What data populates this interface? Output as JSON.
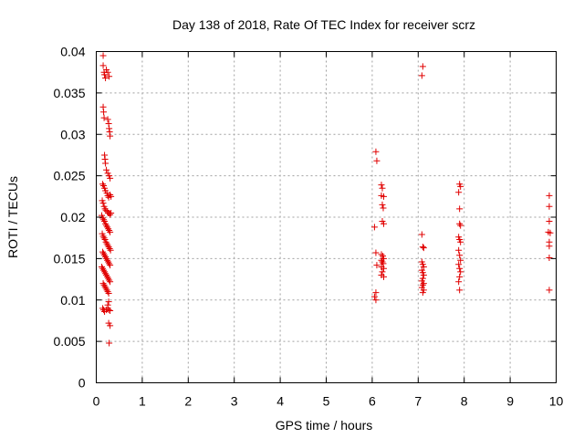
{
  "chart_data": {
    "type": "scatter",
    "title": "Day 138 of 2018, Rate Of TEC Index for receiver scrz",
    "xlabel": "GPS time / hours",
    "ylabel": "ROTI / TECUs",
    "xlim": [
      0,
      10
    ],
    "ylim": [
      0,
      0.04
    ],
    "xticks": [
      "0",
      "1",
      "2",
      "3",
      "4",
      "5",
      "6",
      "7",
      "8",
      "9",
      "10"
    ],
    "yticks": [
      "0",
      "0.005",
      "0.01",
      "0.015",
      "0.02",
      "0.025",
      "0.03",
      "0.035",
      "0.04"
    ],
    "grid": true,
    "marker": "plus",
    "color": "#e00000",
    "series": [
      {
        "points": [
          [
            0.15,
            0.0395
          ],
          [
            0.15,
            0.0383
          ],
          [
            0.17,
            0.0375
          ],
          [
            0.18,
            0.0372
          ],
          [
            0.2,
            0.0368
          ],
          [
            0.22,
            0.0378
          ],
          [
            0.25,
            0.0375
          ],
          [
            0.28,
            0.037
          ],
          [
            0.15,
            0.0333
          ],
          [
            0.16,
            0.0327
          ],
          [
            0.17,
            0.032
          ],
          [
            0.25,
            0.0318
          ],
          [
            0.27,
            0.0313
          ],
          [
            0.28,
            0.0307
          ],
          [
            0.29,
            0.0303
          ],
          [
            0.3,
            0.0298
          ],
          [
            0.18,
            0.0275
          ],
          [
            0.19,
            0.027
          ],
          [
            0.2,
            0.0265
          ],
          [
            0.22,
            0.0257
          ],
          [
            0.25,
            0.0253
          ],
          [
            0.28,
            0.025
          ],
          [
            0.3,
            0.0247
          ],
          [
            0.14,
            0.024
          ],
          [
            0.16,
            0.0238
          ],
          [
            0.18,
            0.0235
          ],
          [
            0.2,
            0.0232
          ],
          [
            0.23,
            0.0229
          ],
          [
            0.25,
            0.0226
          ],
          [
            0.27,
            0.0224
          ],
          [
            0.3,
            0.0227
          ],
          [
            0.32,
            0.0225
          ],
          [
            0.13,
            0.022
          ],
          [
            0.15,
            0.0217
          ],
          [
            0.17,
            0.0213
          ],
          [
            0.19,
            0.021
          ],
          [
            0.21,
            0.0208
          ],
          [
            0.24,
            0.0207
          ],
          [
            0.26,
            0.0205
          ],
          [
            0.28,
            0.0205
          ],
          [
            0.3,
            0.0203
          ],
          [
            0.32,
            0.0205
          ],
          [
            0.12,
            0.0202
          ],
          [
            0.14,
            0.0199
          ],
          [
            0.16,
            0.0197
          ],
          [
            0.18,
            0.0195
          ],
          [
            0.2,
            0.0192
          ],
          [
            0.22,
            0.019
          ],
          [
            0.24,
            0.0188
          ],
          [
            0.26,
            0.0186
          ],
          [
            0.28,
            0.0184
          ],
          [
            0.3,
            0.0182
          ],
          [
            0.13,
            0.018
          ],
          [
            0.15,
            0.0177
          ],
          [
            0.17,
            0.0175
          ],
          [
            0.19,
            0.0173
          ],
          [
            0.21,
            0.017
          ],
          [
            0.23,
            0.0168
          ],
          [
            0.25,
            0.0166
          ],
          [
            0.27,
            0.0164
          ],
          [
            0.29,
            0.0162
          ],
          [
            0.31,
            0.016
          ],
          [
            0.14,
            0.0158
          ],
          [
            0.16,
            0.0156
          ],
          [
            0.18,
            0.0154
          ],
          [
            0.2,
            0.0152
          ],
          [
            0.22,
            0.015
          ],
          [
            0.24,
            0.0148
          ],
          [
            0.26,
            0.0146
          ],
          [
            0.28,
            0.0144
          ],
          [
            0.3,
            0.0142
          ],
          [
            0.12,
            0.014
          ],
          [
            0.14,
            0.0138
          ],
          [
            0.16,
            0.0136
          ],
          [
            0.18,
            0.0134
          ],
          [
            0.2,
            0.0132
          ],
          [
            0.22,
            0.013
          ],
          [
            0.24,
            0.0128
          ],
          [
            0.26,
            0.0126
          ],
          [
            0.28,
            0.0124
          ],
          [
            0.3,
            0.0122
          ],
          [
            0.15,
            0.012
          ],
          [
            0.17,
            0.0118
          ],
          [
            0.19,
            0.0116
          ],
          [
            0.21,
            0.0114
          ],
          [
            0.23,
            0.0112
          ],
          [
            0.25,
            0.011
          ],
          [
            0.27,
            0.0108
          ],
          [
            0.27,
            0.0098
          ],
          [
            0.25,
            0.0094
          ],
          [
            0.14,
            0.009
          ],
          [
            0.16,
            0.0088
          ],
          [
            0.18,
            0.0086
          ],
          [
            0.22,
            0.0088
          ],
          [
            0.25,
            0.009
          ],
          [
            0.27,
            0.0088
          ],
          [
            0.3,
            0.0087
          ],
          [
            0.27,
            0.0072
          ],
          [
            0.3,
            0.0069
          ],
          [
            0.28,
            0.0048
          ],
          [
            6.08,
            0.0279
          ],
          [
            6.1,
            0.0268
          ],
          [
            6.2,
            0.0239
          ],
          [
            6.22,
            0.0235
          ],
          [
            6.2,
            0.0226
          ],
          [
            6.25,
            0.0225
          ],
          [
            6.22,
            0.0215
          ],
          [
            6.24,
            0.0211
          ],
          [
            6.22,
            0.0195
          ],
          [
            6.25,
            0.0192
          ],
          [
            6.05,
            0.0188
          ],
          [
            6.08,
            0.0157
          ],
          [
            6.2,
            0.0155
          ],
          [
            6.23,
            0.0153
          ],
          [
            6.25,
            0.015
          ],
          [
            6.2,
            0.0148
          ],
          [
            6.22,
            0.0146
          ],
          [
            6.24,
            0.0144
          ],
          [
            6.1,
            0.0142
          ],
          [
            6.2,
            0.014
          ],
          [
            6.25,
            0.0138
          ],
          [
            6.22,
            0.0134
          ],
          [
            6.2,
            0.013
          ],
          [
            6.25,
            0.0128
          ],
          [
            6.08,
            0.0109
          ],
          [
            6.05,
            0.0104
          ],
          [
            6.08,
            0.01
          ],
          [
            7.1,
            0.0382
          ],
          [
            7.08,
            0.0371
          ],
          [
            7.08,
            0.0179
          ],
          [
            7.1,
            0.0164
          ],
          [
            7.12,
            0.0163
          ],
          [
            7.08,
            0.0146
          ],
          [
            7.1,
            0.0143
          ],
          [
            7.12,
            0.014
          ],
          [
            7.08,
            0.0136
          ],
          [
            7.1,
            0.0133
          ],
          [
            7.12,
            0.013
          ],
          [
            7.1,
            0.0126
          ],
          [
            7.08,
            0.0123
          ],
          [
            7.12,
            0.012
          ],
          [
            7.1,
            0.0118
          ],
          [
            7.08,
            0.0115
          ],
          [
            7.12,
            0.0112
          ],
          [
            7.1,
            0.0109
          ],
          [
            7.9,
            0.024
          ],
          [
            7.92,
            0.0237
          ],
          [
            7.88,
            0.023
          ],
          [
            7.9,
            0.021
          ],
          [
            7.9,
            0.0192
          ],
          [
            7.92,
            0.019
          ],
          [
            7.88,
            0.0176
          ],
          [
            7.9,
            0.0173
          ],
          [
            7.92,
            0.017
          ],
          [
            7.88,
            0.016
          ],
          [
            7.9,
            0.0154
          ],
          [
            7.92,
            0.0148
          ],
          [
            7.88,
            0.0143
          ],
          [
            7.9,
            0.0138
          ],
          [
            7.92,
            0.0134
          ],
          [
            7.9,
            0.0128
          ],
          [
            7.88,
            0.0122
          ],
          [
            7.9,
            0.0112
          ],
          [
            9.85,
            0.0226
          ],
          [
            9.85,
            0.0213
          ],
          [
            9.85,
            0.0195
          ],
          [
            9.83,
            0.0182
          ],
          [
            9.87,
            0.0181
          ],
          [
            9.85,
            0.017
          ],
          [
            9.85,
            0.0165
          ],
          [
            9.85,
            0.0151
          ],
          [
            9.85,
            0.0112
          ]
        ]
      }
    ]
  }
}
